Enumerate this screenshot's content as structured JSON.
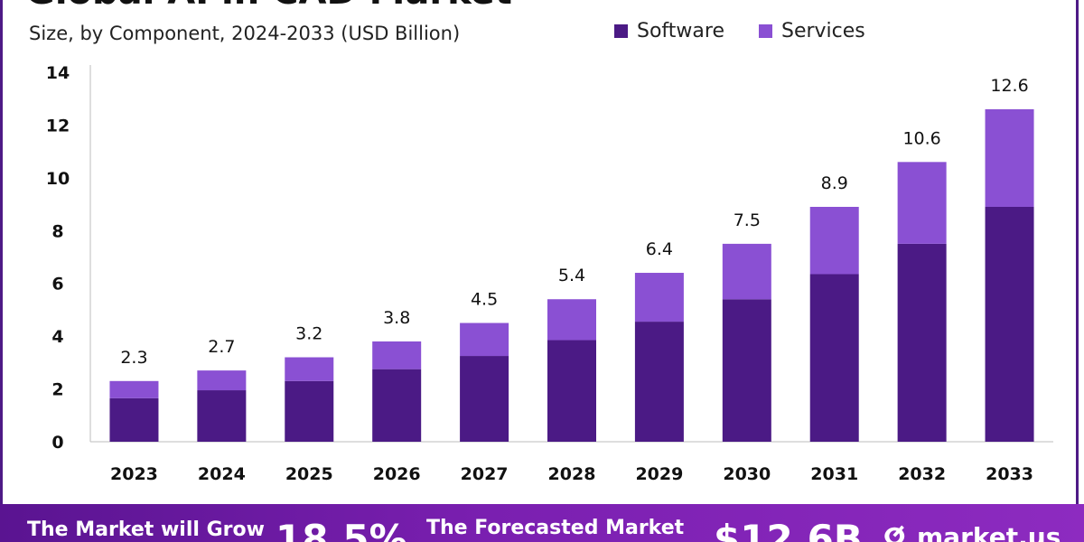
{
  "header": {
    "title": "Global AI in CAD Market",
    "subtitle": "Size, by Component, 2024-2033 (USD Billion)"
  },
  "legend": [
    {
      "label": "Software",
      "color": "#4b1a85"
    },
    {
      "label": "Services",
      "color": "#8a50d3"
    }
  ],
  "footer": {
    "grow_text": "The Market will Grow",
    "cagr": "18.5%",
    "forecast_text": "The Forecasted Market",
    "forecast_value": "$12.6B",
    "logo_icon": "ⵚ",
    "logo": "market.us",
    "gradient_colors": [
      "#5a1491",
      "#8d2bc0"
    ]
  },
  "chart_data": {
    "type": "bar",
    "stacked": true,
    "categories": [
      "2023",
      "2024",
      "2025",
      "2026",
      "2027",
      "2028",
      "2029",
      "2030",
      "2031",
      "2032",
      "2033"
    ],
    "series": [
      {
        "name": "Software",
        "color": "#4b1a85",
        "values": [
          1.65,
          1.95,
          2.3,
          2.75,
          3.25,
          3.85,
          4.55,
          5.4,
          6.35,
          7.5,
          8.9
        ]
      },
      {
        "name": "Services",
        "color": "#8a50d3",
        "values": [
          0.65,
          0.75,
          0.9,
          1.05,
          1.25,
          1.55,
          1.85,
          2.1,
          2.55,
          3.1,
          3.7
        ]
      }
    ],
    "totals": [
      2.3,
      2.7,
      3.2,
      3.8,
      4.5,
      5.4,
      6.4,
      7.5,
      8.9,
      10.6,
      12.6
    ],
    "total_labels": [
      "2.3",
      "2.7",
      "3.2",
      "3.8",
      "4.5",
      "5.4",
      "6.4",
      "7.5",
      "8.9",
      "10.6",
      "12.6"
    ],
    "yticks": [
      0,
      2,
      4,
      6,
      8,
      10,
      12,
      14
    ],
    "ylim": [
      0,
      14
    ],
    "grid": false,
    "legend_position": "top-right"
  }
}
